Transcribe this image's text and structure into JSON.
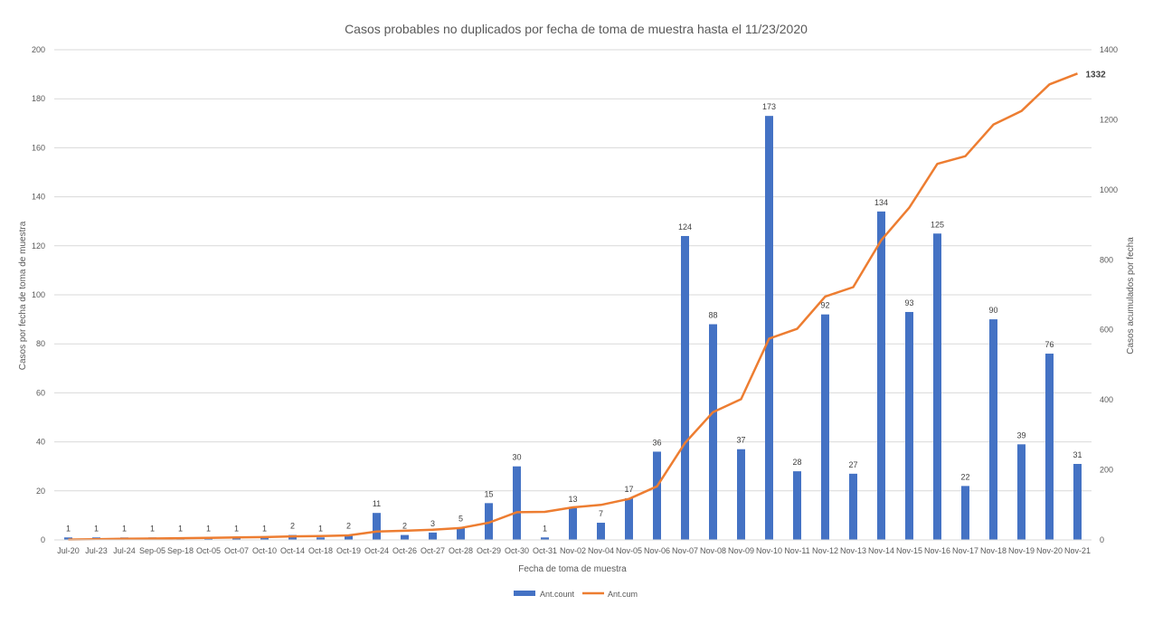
{
  "chart_data": {
    "type": "bar",
    "title": "Casos probables no duplicados por fecha de toma de muestra hasta el 11/23/2020",
    "xlabel": "Fecha de toma de muestra",
    "ylabel": "Casos por fecha de toma de muestra",
    "y2label": "Casos acumulados por fecha",
    "ylim": [
      0,
      200
    ],
    "y2lim": [
      0,
      1400
    ],
    "yticks": [
      "0",
      "20",
      "40",
      "60",
      "80",
      "100",
      "120",
      "140",
      "160",
      "180",
      "200"
    ],
    "y2ticks": [
      "0",
      "200",
      "400",
      "600",
      "800",
      "1000",
      "1200",
      "1400"
    ],
    "grid": true,
    "legend_position": "bottom",
    "categories": [
      "Jul-20",
      "Jul-23",
      "Jul-24",
      "Sep-05",
      "Sep-18",
      "Oct-05",
      "Oct-07",
      "Oct-10",
      "Oct-14",
      "Oct-18",
      "Oct-19",
      "Oct-24",
      "Oct-26",
      "Oct-27",
      "Oct-28",
      "Oct-29",
      "Oct-30",
      "Oct-31",
      "Nov-02",
      "Nov-04",
      "Nov-05",
      "Nov-06",
      "Nov-07",
      "Nov-08",
      "Nov-09",
      "Nov-10",
      "Nov-11",
      "Nov-12",
      "Nov-13",
      "Nov-14",
      "Nov-15",
      "Nov-16",
      "Nov-17",
      "Nov-18",
      "Nov-19",
      "Nov-20",
      "Nov-21"
    ],
    "series": [
      {
        "name": "Ant.count",
        "kind": "bar",
        "axis": "left",
        "color": "#4472C4",
        "values": [
          1,
          1,
          1,
          1,
          1,
          1,
          1,
          1,
          2,
          1,
          2,
          11,
          2,
          3,
          5,
          15,
          30,
          1,
          13,
          7,
          17,
          36,
          124,
          88,
          37,
          173,
          28,
          92,
          27,
          134,
          93,
          125,
          22,
          90,
          39,
          76,
          31
        ]
      },
      {
        "name": "Ant.cum",
        "kind": "line",
        "axis": "right",
        "color": "#ED7D31",
        "values": [
          1,
          2,
          3,
          4,
          5,
          6,
          7,
          8,
          10,
          11,
          13,
          24,
          26,
          29,
          34,
          49,
          79,
          80,
          93,
          100,
          117,
          153,
          277,
          365,
          402,
          575,
          603,
          695,
          722,
          856,
          949,
          1074,
          1096,
          1186,
          1225,
          1301,
          1332
        ]
      }
    ],
    "end_label": "1332"
  }
}
